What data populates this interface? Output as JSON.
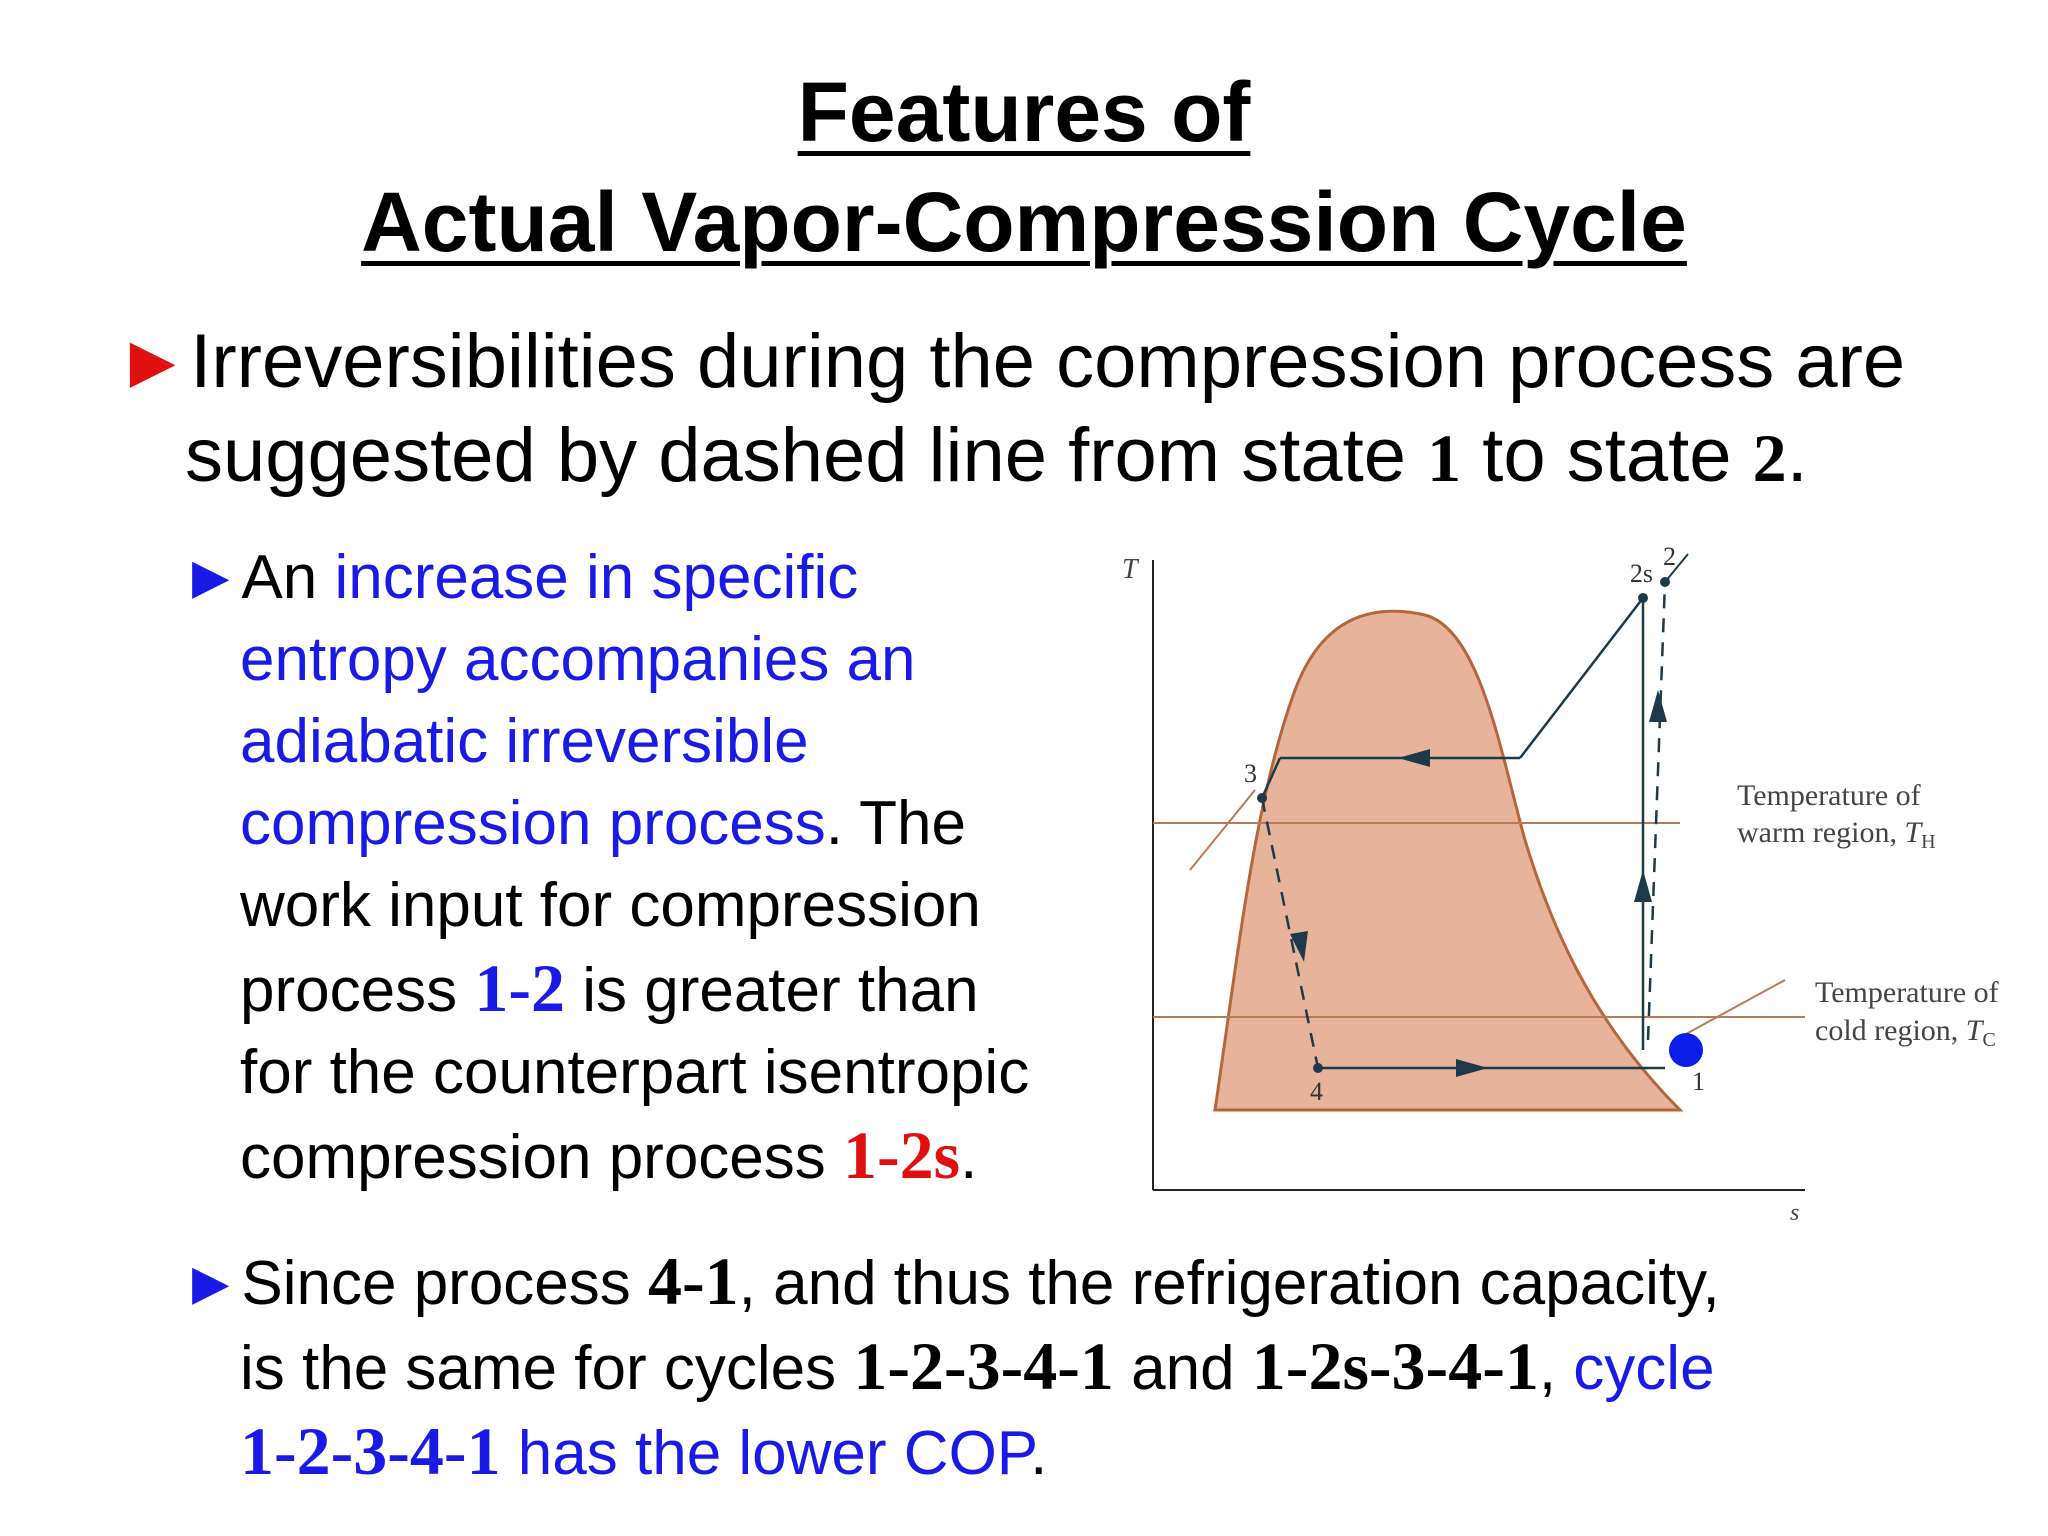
{
  "title": {
    "line1": "Features of",
    "line2": "Actual Vapor-Compression Cycle"
  },
  "bullet1": {
    "marker": "►",
    "text1": "Irreversibilities during the compression process are",
    "text2a": "suggested by dashed line from state ",
    "state1": "1",
    "text2b": " to state ",
    "state2": "2",
    "text2c": "."
  },
  "bullet2": {
    "marker": "►",
    "a": "An ",
    "b": "increase in specific",
    "c": "entropy accompanies an",
    "d": "adiabatic irreversible",
    "e": "compression process",
    "f": ".  The",
    "g": "work input for compression",
    "h": "process ",
    "h_num": "1-2",
    "h2": " is greater than",
    "i": "for the counterpart isentropic",
    "j": "compression process ",
    "j_num": "1-2s",
    "j2": "."
  },
  "bullet3": {
    "marker": "►",
    "a": "Since process ",
    "a_num": "4-1",
    "a2": ", and thus the refrigeration capacity,",
    "b": "is the same for cycles ",
    "b_num1": "1-2-3-4-1",
    "b2": " and ",
    "b_num2": "1-2s-3-4-1",
    "b3": ", ",
    "b4": "cycle",
    "c_num": "1-2-3-4-1",
    "c2": " has the lower COP",
    "c3": "."
  },
  "diagram": {
    "axis_y": "T",
    "axis_x": "s",
    "state_labels": [
      "1",
      "2",
      "2s",
      "3",
      "4"
    ],
    "th_label_1": "Temperature of",
    "th_label_2": "warm region, ",
    "th_sym": "T",
    "th_sub": "H",
    "tc_label_1": "Temperature of",
    "tc_label_2": "cold region, ",
    "tc_sym": "T",
    "tc_sub": "C",
    "colors": {
      "dome": "#e7b49b",
      "dome_edge": "#b5663a",
      "line": "#1e3a4a",
      "temp_line": "#b77a55",
      "marker": "#0a1ee8"
    }
  }
}
